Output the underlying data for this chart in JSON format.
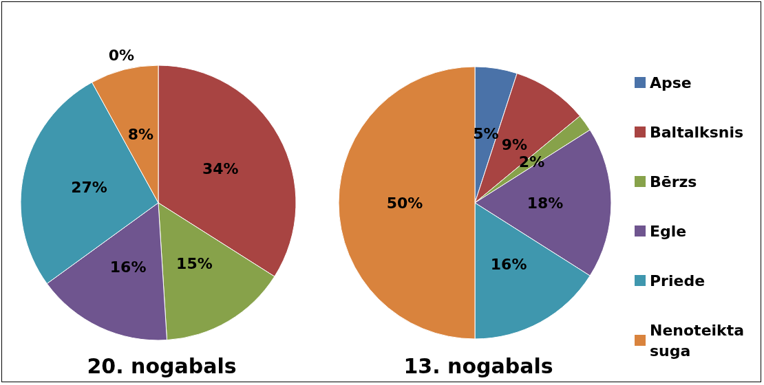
{
  "chart_data": {
    "type": "pie",
    "categories": [
      "Apse",
      "Baltalksnis",
      "Bērzs",
      "Egle",
      "Priede",
      "Nenoteikta suga"
    ],
    "colors": [
      "#4a72a8",
      "#a84442",
      "#87a24a",
      "#6f558f",
      "#3f97ae",
      "#d9833d"
    ],
    "legend": "right",
    "series": [
      {
        "name": "20. nogabals",
        "values": [
          0,
          34,
          15,
          16,
          27,
          8
        ],
        "value_labels": [
          "0%",
          "34%",
          "15%",
          "16%",
          "27%",
          "8%"
        ]
      },
      {
        "name": "13. nogabals",
        "values": [
          5,
          9,
          2,
          18,
          16,
          50
        ],
        "value_labels": [
          "5%",
          "9%",
          "2%",
          "18%",
          "16%",
          "50%"
        ]
      }
    ]
  }
}
